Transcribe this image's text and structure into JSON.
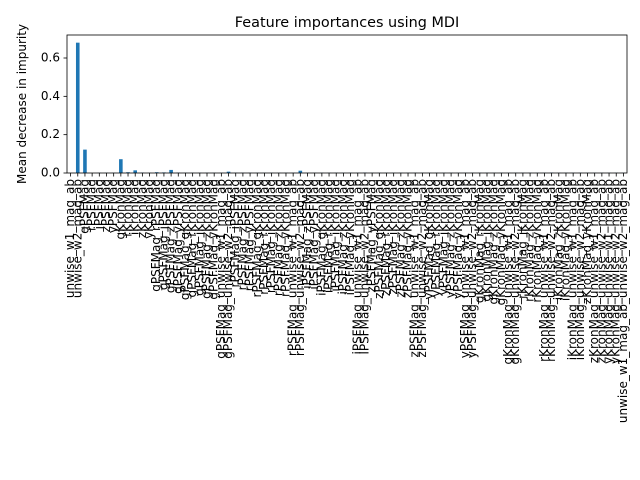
{
  "chart_data": {
    "type": "bar",
    "title": "Feature importances using MDI",
    "xlabel": "",
    "ylabel": "Mean decrease in impurity",
    "ylim": [
      0,
      0.72
    ],
    "yticks": [
      0.0,
      0.2,
      0.4,
      0.6
    ],
    "ytick_labels": [
      "0.0",
      "0.2",
      "0.4",
      "0.6"
    ],
    "grid": false,
    "legend": "none",
    "bar_color": "#1f77b4",
    "categories": [
      "unwise_w1_mag_ab",
      "unwise_w2_mag_ab",
      "gPSFMag",
      "rPSFMag",
      "iPSFMag",
      "zPSFMag",
      "yPSFMag",
      "gKronMag",
      "rKronMag",
      "iKronMag",
      "zKronMag",
      "yKronMag",
      "gPSFMag_rPSFMag",
      "gPSFMag_iPSFMag",
      "gPSFMag_zPSFMag",
      "gPSFMag_yPSFMag",
      "gPSFMag_gKronMag",
      "gPSFMag_rKronMag",
      "gPSFMag_iKronMag",
      "gPSFMag_zKronMag",
      "gPSFMag_yKronMag",
      "gPSFMag_unwise_w1_mag_ab",
      "gPSFMag_unwise_w2_mag_ab",
      "rPSFMag_iPSFMag",
      "rPSFMag_zPSFMag",
      "rPSFMag_yPSFMag",
      "rPSFMag_gKronMag",
      "rPSFMag_rKronMag",
      "rPSFMag_iKronMag",
      "rPSFMag_zKronMag",
      "rPSFMag_yKronMag",
      "rPSFMag_unwise_w1_mag_ab",
      "rPSFMag_unwise_w2_mag_ab",
      "iPSFMag_zPSFMag",
      "iPSFMag_yPSFMag",
      "iPSFMag_gKronMag",
      "iPSFMag_rKronMag",
      "iPSFMag_iKronMag",
      "iPSFMag_zKronMag",
      "iPSFMag_yKronMag",
      "iPSFMag_unwise_w1_mag_ab",
      "iPSFMag_unwise_w2_mag_ab",
      "zPSFMag_yPSFMag",
      "zPSFMag_gKronMag",
      "zPSFMag_rKronMag",
      "zPSFMag_iKronMag",
      "zPSFMag_zKronMag",
      "zPSFMag_yKronMag",
      "zPSFMag_unwise_w1_mag_ab",
      "zPSFMag_unwise_w2_mag_ab",
      "yPSFMag_gKronMag",
      "yPSFMag_rKronMag",
      "yPSFMag_iKronMag",
      "yPSFMag_zKronMag",
      "yPSFMag_yKronMag",
      "yPSFMag_unwise_w1_mag_ab",
      "yPSFMag_unwise_w2_mag_ab",
      "gKronMag_rKronMag",
      "gKronMag_iKronMag",
      "gKronMag_zKronMag",
      "gKronMag_yKronMag",
      "gKronMag_unwise_w1_mag_ab",
      "gKronMag_unwise_w2_mag_ab",
      "rKronMag_iKronMag",
      "rKronMag_zKronMag",
      "rKronMag_yKronMag",
      "rKronMag_unwise_w1_mag_ab",
      "rKronMag_unwise_w2_mag_ab",
      "iKronMag_zKronMag",
      "iKronMag_yKronMag",
      "iKronMag_unwise_w1_mag_ab",
      "iKronMag_unwise_w2_mag_ab",
      "zKronMag_yKronMag",
      "zKronMag_unwise_w1_mag_ab",
      "zKronMag_unwise_w2_mag_ab",
      "yKronMag_unwise_w1_mag_ab",
      "yKronMag_unwise_w2_mag_ab",
      "unwise_w1_mag_ab_unwise_w2_mag_ab"
    ],
    "values": [
      0.0,
      0.68,
      0.122,
      0.0,
      0.001,
      0.001,
      0.001,
      0.072,
      0.004,
      0.014,
      0.002,
      0.001,
      0.004,
      0.003,
      0.016,
      0.002,
      0.001,
      0.001,
      0.001,
      0.001,
      0.001,
      0.001,
      0.007,
      0.001,
      0.001,
      0.001,
      0.001,
      0.001,
      0.001,
      0.001,
      0.001,
      0.001,
      0.012,
      0.001,
      0.001,
      0.001,
      0.001,
      0.001,
      0.001,
      0.001,
      0.001,
      0.002,
      0.001,
      0.001,
      0.001,
      0.001,
      0.001,
      0.001,
      0.001,
      0.001,
      0.001,
      0.001,
      0.001,
      0.001,
      0.001,
      0.001,
      0.001,
      0.001,
      0.001,
      0.001,
      0.001,
      0.001,
      0.001,
      0.001,
      0.001,
      0.001,
      0.001,
      0.002,
      0.001,
      0.001,
      0.001,
      0.001,
      0.001,
      0.001,
      0.001,
      0.001,
      0.001,
      0.001
    ]
  }
}
